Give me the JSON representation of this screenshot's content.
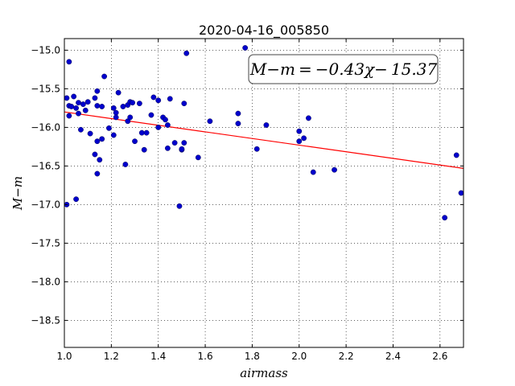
{
  "chart_data": {
    "type": "scatter",
    "title": "2020-04-16_005850",
    "xlabel": "airmass",
    "ylabel": "M−m",
    "xlim": [
      1.0,
      2.7
    ],
    "ylim": [
      -18.85,
      -14.85
    ],
    "y_inverted": true,
    "grid": true,
    "xticks": [
      "1.0",
      "1.2",
      "1.4",
      "1.6",
      "1.8",
      "2.0",
      "2.2",
      "2.4",
      "2.6"
    ],
    "yticks": [
      "−15.0",
      "−15.5",
      "−16.0",
      "−16.5",
      "−17.0",
      "−17.5",
      "−18.0",
      "−18.5"
    ],
    "annotation": "M−m = −0.43χ− 15.37",
    "point_color": "#0000cc",
    "fit_color": "#ff0000",
    "fit_line": {
      "slope": -0.43,
      "intercept": -15.37
    },
    "points": [
      [
        1.01,
        -15.62
      ],
      [
        1.01,
        -17.0
      ],
      [
        1.02,
        -15.15
      ],
      [
        1.02,
        -15.72
      ],
      [
        1.02,
        -15.85
      ],
      [
        1.03,
        -15.73
      ],
      [
        1.04,
        -15.6
      ],
      [
        1.05,
        -16.93
      ],
      [
        1.05,
        -15.75
      ],
      [
        1.06,
        -15.68
      ],
      [
        1.06,
        -15.82
      ],
      [
        1.07,
        -16.03
      ],
      [
        1.08,
        -15.7
      ],
      [
        1.09,
        -15.78
      ],
      [
        1.1,
        -15.67
      ],
      [
        1.11,
        -16.08
      ],
      [
        1.13,
        -15.62
      ],
      [
        1.13,
        -16.35
      ],
      [
        1.14,
        -15.53
      ],
      [
        1.14,
        -15.72
      ],
      [
        1.14,
        -16.18
      ],
      [
        1.14,
        -16.6
      ],
      [
        1.15,
        -16.42
      ],
      [
        1.16,
        -16.15
      ],
      [
        1.16,
        -15.73
      ],
      [
        1.17,
        -15.34
      ],
      [
        1.19,
        -16.01
      ],
      [
        1.21,
        -15.75
      ],
      [
        1.21,
        -16.1
      ],
      [
        1.22,
        -15.81
      ],
      [
        1.22,
        -15.87
      ],
      [
        1.23,
        -15.55
      ],
      [
        1.25,
        -15.73
      ],
      [
        1.26,
        -16.48
      ],
      [
        1.27,
        -15.71
      ],
      [
        1.27,
        -15.92
      ],
      [
        1.28,
        -15.67
      ],
      [
        1.28,
        -15.87
      ],
      [
        1.29,
        -15.68
      ],
      [
        1.3,
        -16.18
      ],
      [
        1.32,
        -15.69
      ],
      [
        1.33,
        -16.07
      ],
      [
        1.34,
        -16.29
      ],
      [
        1.35,
        -16.07
      ],
      [
        1.37,
        -15.84
      ],
      [
        1.38,
        -15.61
      ],
      [
        1.4,
        -15.65
      ],
      [
        1.4,
        -16.0
      ],
      [
        1.42,
        -15.87
      ],
      [
        1.43,
        -15.9
      ],
      [
        1.44,
        -16.27
      ],
      [
        1.44,
        -15.97
      ],
      [
        1.45,
        -15.63
      ],
      [
        1.47,
        -16.2
      ],
      [
        1.49,
        -17.02
      ],
      [
        1.5,
        -16.29
      ],
      [
        1.5,
        -16.28
      ],
      [
        1.51,
        -15.69
      ],
      [
        1.51,
        -16.2
      ],
      [
        1.52,
        -15.04
      ],
      [
        1.57,
        -16.39
      ],
      [
        1.62,
        -15.92
      ],
      [
        1.74,
        -15.82
      ],
      [
        1.74,
        -15.95
      ],
      [
        1.77,
        -14.97
      ],
      [
        1.82,
        -16.28
      ],
      [
        1.86,
        -15.97
      ],
      [
        2.0,
        -16.05
      ],
      [
        2.0,
        -16.18
      ],
      [
        2.02,
        -16.14
      ],
      [
        2.04,
        -15.88
      ],
      [
        2.06,
        -16.58
      ],
      [
        2.15,
        -16.55
      ],
      [
        2.62,
        -17.17
      ],
      [
        2.67,
        -16.36
      ],
      [
        2.69,
        -16.85
      ]
    ]
  }
}
